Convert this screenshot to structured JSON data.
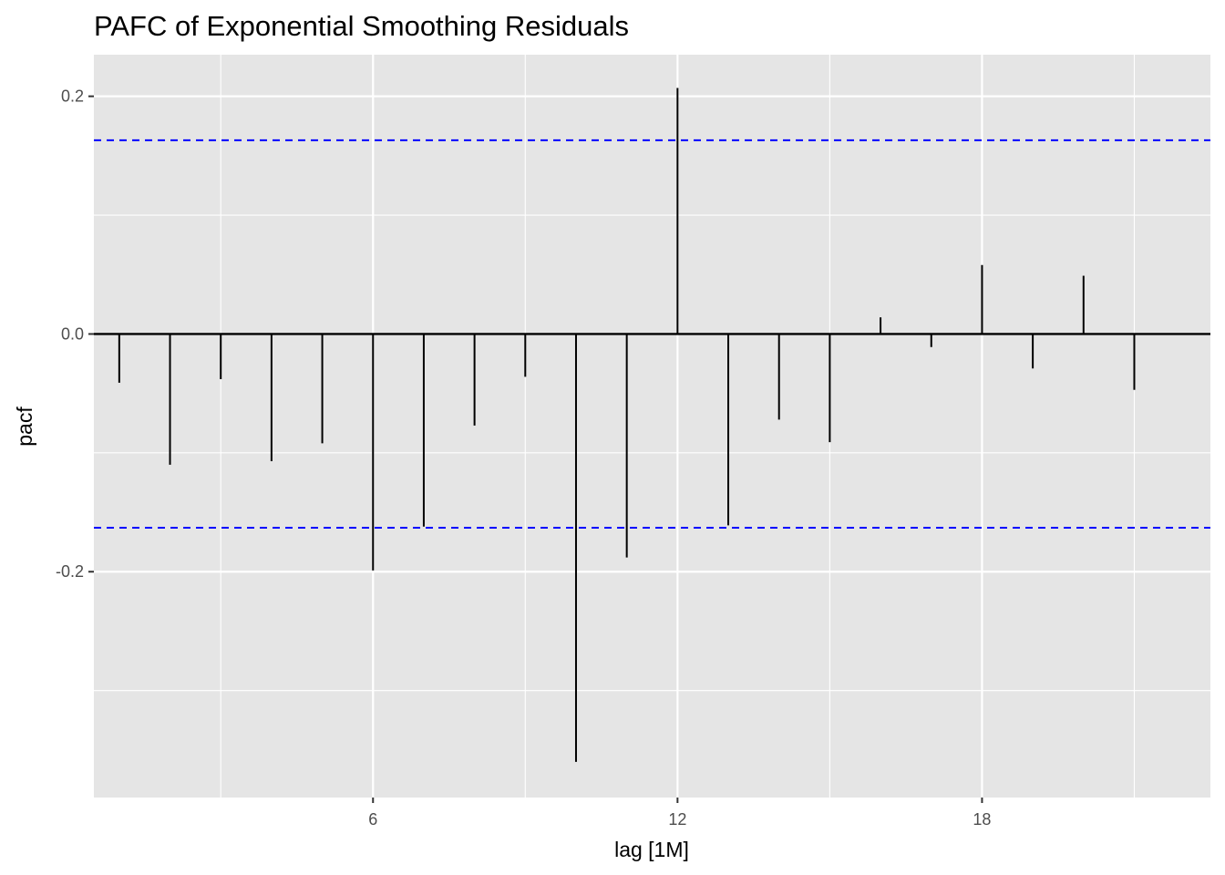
{
  "chart_data": {
    "type": "bar",
    "title": "PAFC of Exponential Smoothing Residuals",
    "xlabel": "lag [1M]",
    "ylabel": "pacf",
    "xlim": [
      0.5,
      22.5
    ],
    "ylim": [
      -0.39,
      0.235
    ],
    "x_ticks": [
      6,
      12,
      18
    ],
    "x_tick_labels": [
      "6",
      "12",
      "18"
    ],
    "x_minor_ticks": [
      3,
      9,
      15,
      21
    ],
    "y_ticks": [
      0.2,
      0.0,
      -0.2
    ],
    "y_tick_labels": [
      "0.2",
      "0.0",
      "-0.2"
    ],
    "y_minor_ticks": [
      0.1,
      -0.1,
      -0.3
    ],
    "confidence_bounds": [
      0.163,
      -0.163
    ],
    "series": [
      {
        "name": "pacf",
        "lags": [
          1,
          2,
          3,
          4,
          5,
          6,
          7,
          8,
          9,
          10,
          11,
          12,
          13,
          14,
          15,
          16,
          17,
          18,
          19,
          20,
          21
        ],
        "values": [
          -0.041,
          -0.11,
          -0.038,
          -0.107,
          -0.092,
          -0.199,
          -0.162,
          -0.077,
          -0.036,
          -0.36,
          -0.188,
          0.207,
          -0.161,
          -0.072,
          -0.091,
          0.014,
          -0.011,
          0.058,
          -0.029,
          0.049,
          -0.047
        ]
      }
    ],
    "colors": {
      "panel_background": "#e5e5e5",
      "grid": "#ffffff",
      "stem": "#000000",
      "zero_line": "#000000",
      "bounds": "#0000ff"
    }
  }
}
